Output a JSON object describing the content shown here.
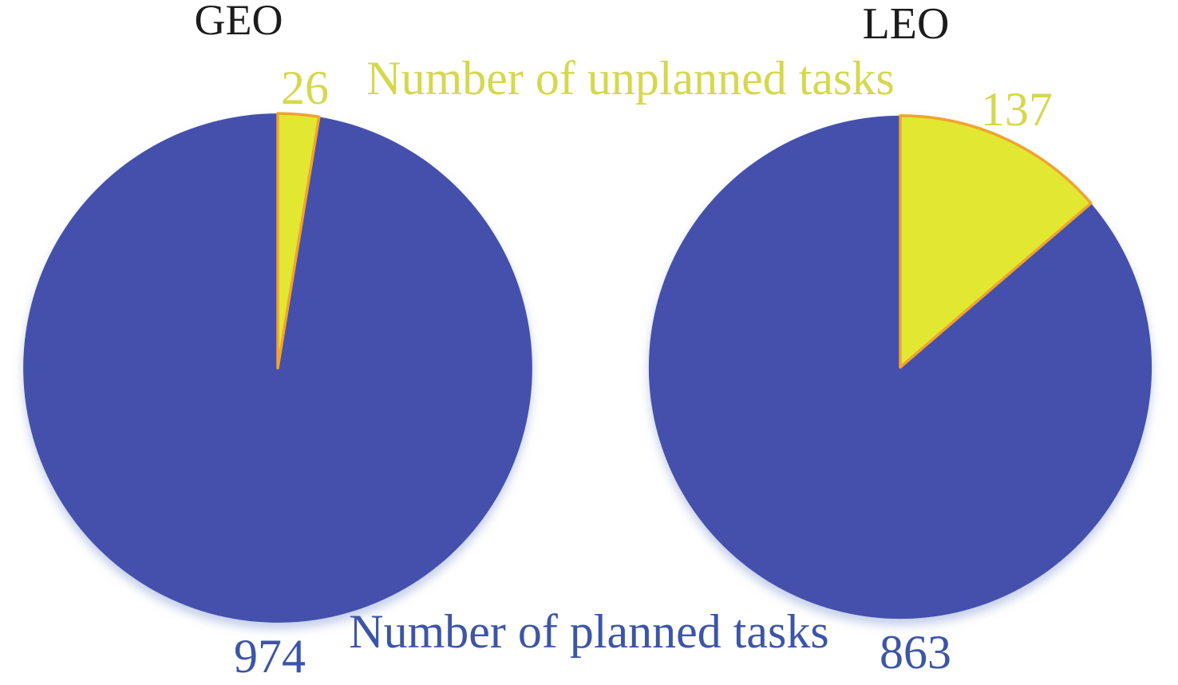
{
  "figure": {
    "background_color": "#ffffff",
    "description": "Two pie charts comparing planned vs unplanned tasks for GEO and LEO"
  },
  "annotations": {
    "unplanned": "Number of unplanned tasks",
    "planned": "Number of planned tasks",
    "unplanned_text_color": "#d5d84c",
    "planned_text_color": "#3c55a8",
    "title_text_color": "#1c1c1c"
  },
  "chart_data": [
    {
      "type": "pie",
      "title": "GEO",
      "labels": [
        "Number of unplanned tasks",
        "Number of planned tasks"
      ],
      "values": [
        26,
        974
      ],
      "total": 1000,
      "colors": [
        "#e2e832",
        "#4450ac"
      ],
      "border_colors": [
        "#f0a32f",
        null
      ],
      "start_angle_deg": 0,
      "direction": "clockwise",
      "legend_position": "none",
      "value_label_positions": [
        "above-slice",
        "below-pie"
      ]
    },
    {
      "type": "pie",
      "title": "LEO",
      "labels": [
        "Number of unplanned tasks",
        "Number of planned tasks"
      ],
      "values": [
        137,
        863
      ],
      "total": 1000,
      "colors": [
        "#e2e832",
        "#4450ac"
      ],
      "border_colors": [
        "#f0a32f",
        null
      ],
      "start_angle_deg": 0,
      "direction": "clockwise",
      "legend_position": "none",
      "value_label_positions": [
        "above-slice",
        "below-pie"
      ]
    }
  ]
}
